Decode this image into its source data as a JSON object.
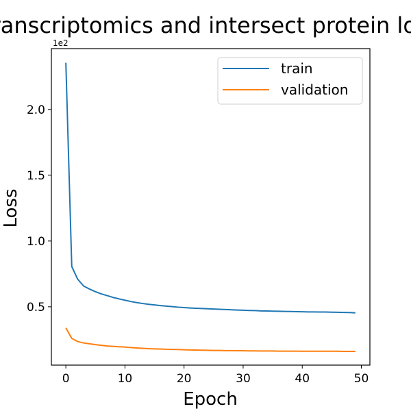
{
  "chart_data": {
    "type": "line",
    "title": "Transcriptomics and intersect protein loss",
    "xlabel": "Epoch",
    "ylabel": "Loss",
    "offset_label": "1e2",
    "xlim": [
      -2.45,
      51.45
    ],
    "ylim": [
      5.67,
      246.23
    ],
    "xticks": [
      0,
      10,
      20,
      30,
      40,
      50
    ],
    "yticks": [
      50,
      100,
      150,
      200
    ],
    "ytick_labels": [
      "0.5",
      "1.0",
      "1.5",
      "2.0"
    ],
    "grid": false,
    "legend_position": "top-right",
    "series": [
      {
        "name": "train",
        "color": "#1f77b4",
        "x": [
          0,
          1,
          2,
          3,
          4,
          5,
          6,
          7,
          8,
          9,
          10,
          11,
          12,
          13,
          14,
          15,
          16,
          17,
          18,
          19,
          20,
          21,
          22,
          23,
          24,
          25,
          26,
          27,
          28,
          29,
          30,
          31,
          32,
          33,
          34,
          35,
          36,
          37,
          38,
          39,
          40,
          41,
          42,
          43,
          44,
          45,
          46,
          47,
          48,
          49
        ],
        "values": [
          235.5,
          80.6,
          71,
          65.8,
          63.5,
          61.5,
          59.8,
          58.5,
          57.1,
          56,
          55,
          54,
          53.2,
          52.5,
          51.9,
          51.4,
          50.9,
          50.5,
          50.1,
          49.7,
          49.4,
          49.1,
          48.9,
          48.7,
          48.5,
          48.3,
          48.1,
          47.9,
          47.7,
          47.5,
          47.4,
          47.2,
          47.1,
          46.9,
          46.8,
          46.7,
          46.6,
          46.5,
          46.4,
          46.3,
          46.2,
          46.1,
          46.1,
          46,
          46,
          45.9,
          45.8,
          45.7,
          45.6,
          45.4
        ]
      },
      {
        "name": "validation",
        "color": "#ff7f0e",
        "x": [
          0,
          1,
          2,
          3,
          4,
          5,
          6,
          7,
          8,
          9,
          10,
          11,
          12,
          13,
          14,
          15,
          16,
          17,
          18,
          19,
          20,
          21,
          22,
          23,
          24,
          25,
          26,
          27,
          28,
          29,
          30,
          31,
          32,
          33,
          34,
          35,
          36,
          37,
          38,
          39,
          40,
          41,
          42,
          43,
          44,
          45,
          46,
          47,
          48,
          49
        ],
        "values": [
          34,
          26,
          23.6,
          22.5,
          21.9,
          21.2,
          20.7,
          20.2,
          19.9,
          19.6,
          19.4,
          19,
          18.7,
          18.4,
          18.2,
          18,
          17.9,
          17.7,
          17.6,
          17.5,
          17.3,
          17.2,
          17.1,
          17,
          16.9,
          16.8,
          16.8,
          16.7,
          16.7,
          16.6,
          16.6,
          16.5,
          16.5,
          16.4,
          16.4,
          16.4,
          16.3,
          16.3,
          16.3,
          16.3,
          16.2,
          16.2,
          16.2,
          16.2,
          16.2,
          16.2,
          16.2,
          16.1,
          16.1,
          16.1
        ]
      }
    ]
  }
}
